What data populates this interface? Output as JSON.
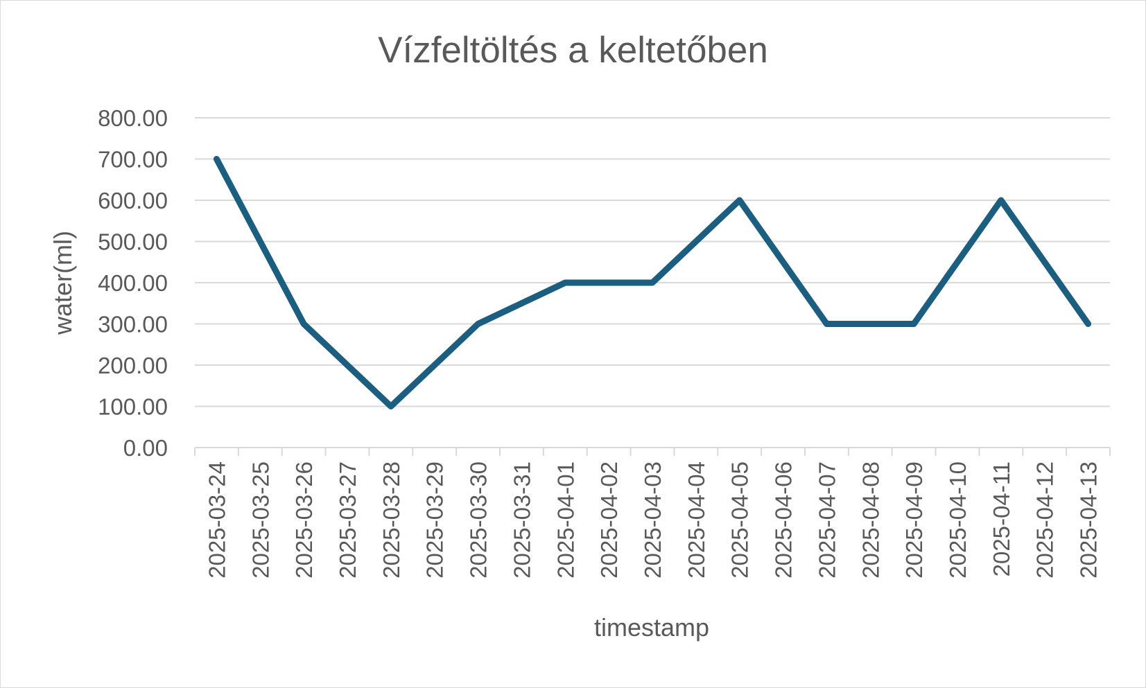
{
  "chart_data": {
    "type": "line",
    "title": "Vízfeltöltés a keltetőben",
    "xlabel": "timestamp",
    "ylabel": "water(ml)",
    "ylim": [
      0,
      800
    ],
    "y_ticks": [
      "0.00",
      "100.00",
      "200.00",
      "300.00",
      "400.00",
      "500.00",
      "600.00",
      "700.00",
      "800.00"
    ],
    "grid": true,
    "legend": "none",
    "categories": [
      "2025-03-24",
      "2025-03-25",
      "2025-03-26",
      "2025-03-27",
      "2025-03-28",
      "2025-03-29",
      "2025-03-30",
      "2025-03-31",
      "2025-04-01",
      "2025-04-02",
      "2025-04-03",
      "2025-04-04",
      "2025-04-05",
      "2025-04-06",
      "2025-04-07",
      "2025-04-08",
      "2025-04-09",
      "2025-04-10",
      "2025-04-11",
      "2025-04-12",
      "2025-04-13"
    ],
    "series": [
      {
        "color": "#1b5e80",
        "points": [
          {
            "x": "2025-03-24",
            "y": 700
          },
          {
            "x": "2025-03-26",
            "y": 300
          },
          {
            "x": "2025-03-28",
            "y": 100
          },
          {
            "x": "2025-03-30",
            "y": 300
          },
          {
            "x": "2025-04-01",
            "y": 400
          },
          {
            "x": "2025-04-03",
            "y": 400
          },
          {
            "x": "2025-04-05",
            "y": 600
          },
          {
            "x": "2025-04-07",
            "y": 300
          },
          {
            "x": "2025-04-09",
            "y": 300
          },
          {
            "x": "2025-04-11",
            "y": 600
          },
          {
            "x": "2025-04-13",
            "y": 300
          }
        ]
      }
    ]
  }
}
